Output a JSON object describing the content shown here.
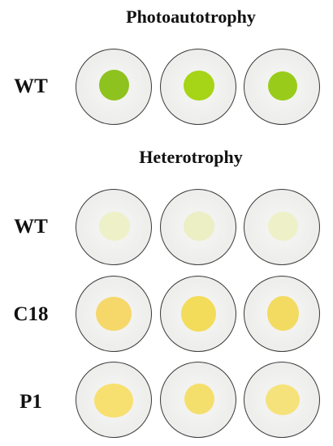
{
  "headings": {
    "photoautotrophy": "Photoautotrophy",
    "heterotrophy": "Heterotrophy"
  },
  "rows": [
    {
      "label": "WT",
      "condition": "photoautotrophy",
      "colony_colors": [
        "#8ec21e",
        "#a6d416",
        "#99cc1a"
      ]
    },
    {
      "label": "WT",
      "condition": "heterotrophy",
      "colony_colors": [
        "#eef0c8",
        "#eceec4",
        "#eef0c8"
      ]
    },
    {
      "label": "C18",
      "condition": "heterotrophy",
      "colony_colors": [
        "#f6d76a",
        "#f3dc5a",
        "#f3db62"
      ]
    },
    {
      "label": "P1",
      "condition": "heterotrophy",
      "colony_colors": [
        "#f7e06f",
        "#f5df6c",
        "#f6e27a"
      ]
    }
  ]
}
